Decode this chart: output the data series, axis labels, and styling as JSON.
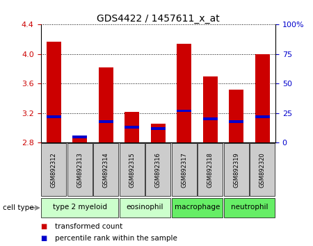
{
  "title": "GDS4422 / 1457611_x_at",
  "samples": [
    "GSM892312",
    "GSM892313",
    "GSM892314",
    "GSM892315",
    "GSM892316",
    "GSM892317",
    "GSM892318",
    "GSM892319",
    "GSM892320"
  ],
  "transformed_count": [
    4.17,
    2.87,
    3.82,
    3.22,
    3.06,
    4.14,
    3.7,
    3.52,
    4.0
  ],
  "percentile_rank": [
    22,
    5,
    18,
    13,
    12,
    27,
    20,
    18,
    22
  ],
  "y_min": 2.8,
  "y_max": 4.4,
  "y_ticks": [
    2.8,
    3.2,
    3.6,
    4.0,
    4.4
  ],
  "right_y_ticks": [
    0,
    25,
    50,
    75,
    100
  ],
  "cell_types": [
    {
      "label": "type 2 myeloid",
      "indices": [
        0,
        1,
        2
      ],
      "color": "#ccffcc"
    },
    {
      "label": "eosinophil",
      "indices": [
        3,
        4
      ],
      "color": "#ccffcc"
    },
    {
      "label": "macrophage",
      "indices": [
        5,
        6
      ],
      "color": "#66ee66"
    },
    {
      "label": "neutrophil",
      "indices": [
        7,
        8
      ],
      "color": "#66ee66"
    }
  ],
  "bar_color_red": "#cc0000",
  "bar_color_blue": "#0000cc",
  "bar_width": 0.55,
  "legend_label_red": "transformed count",
  "legend_label_blue": "percentile rank within the sample",
  "tick_color_left": "#cc0000",
  "tick_color_right": "#0000cc",
  "sample_box_color": "#cccccc"
}
